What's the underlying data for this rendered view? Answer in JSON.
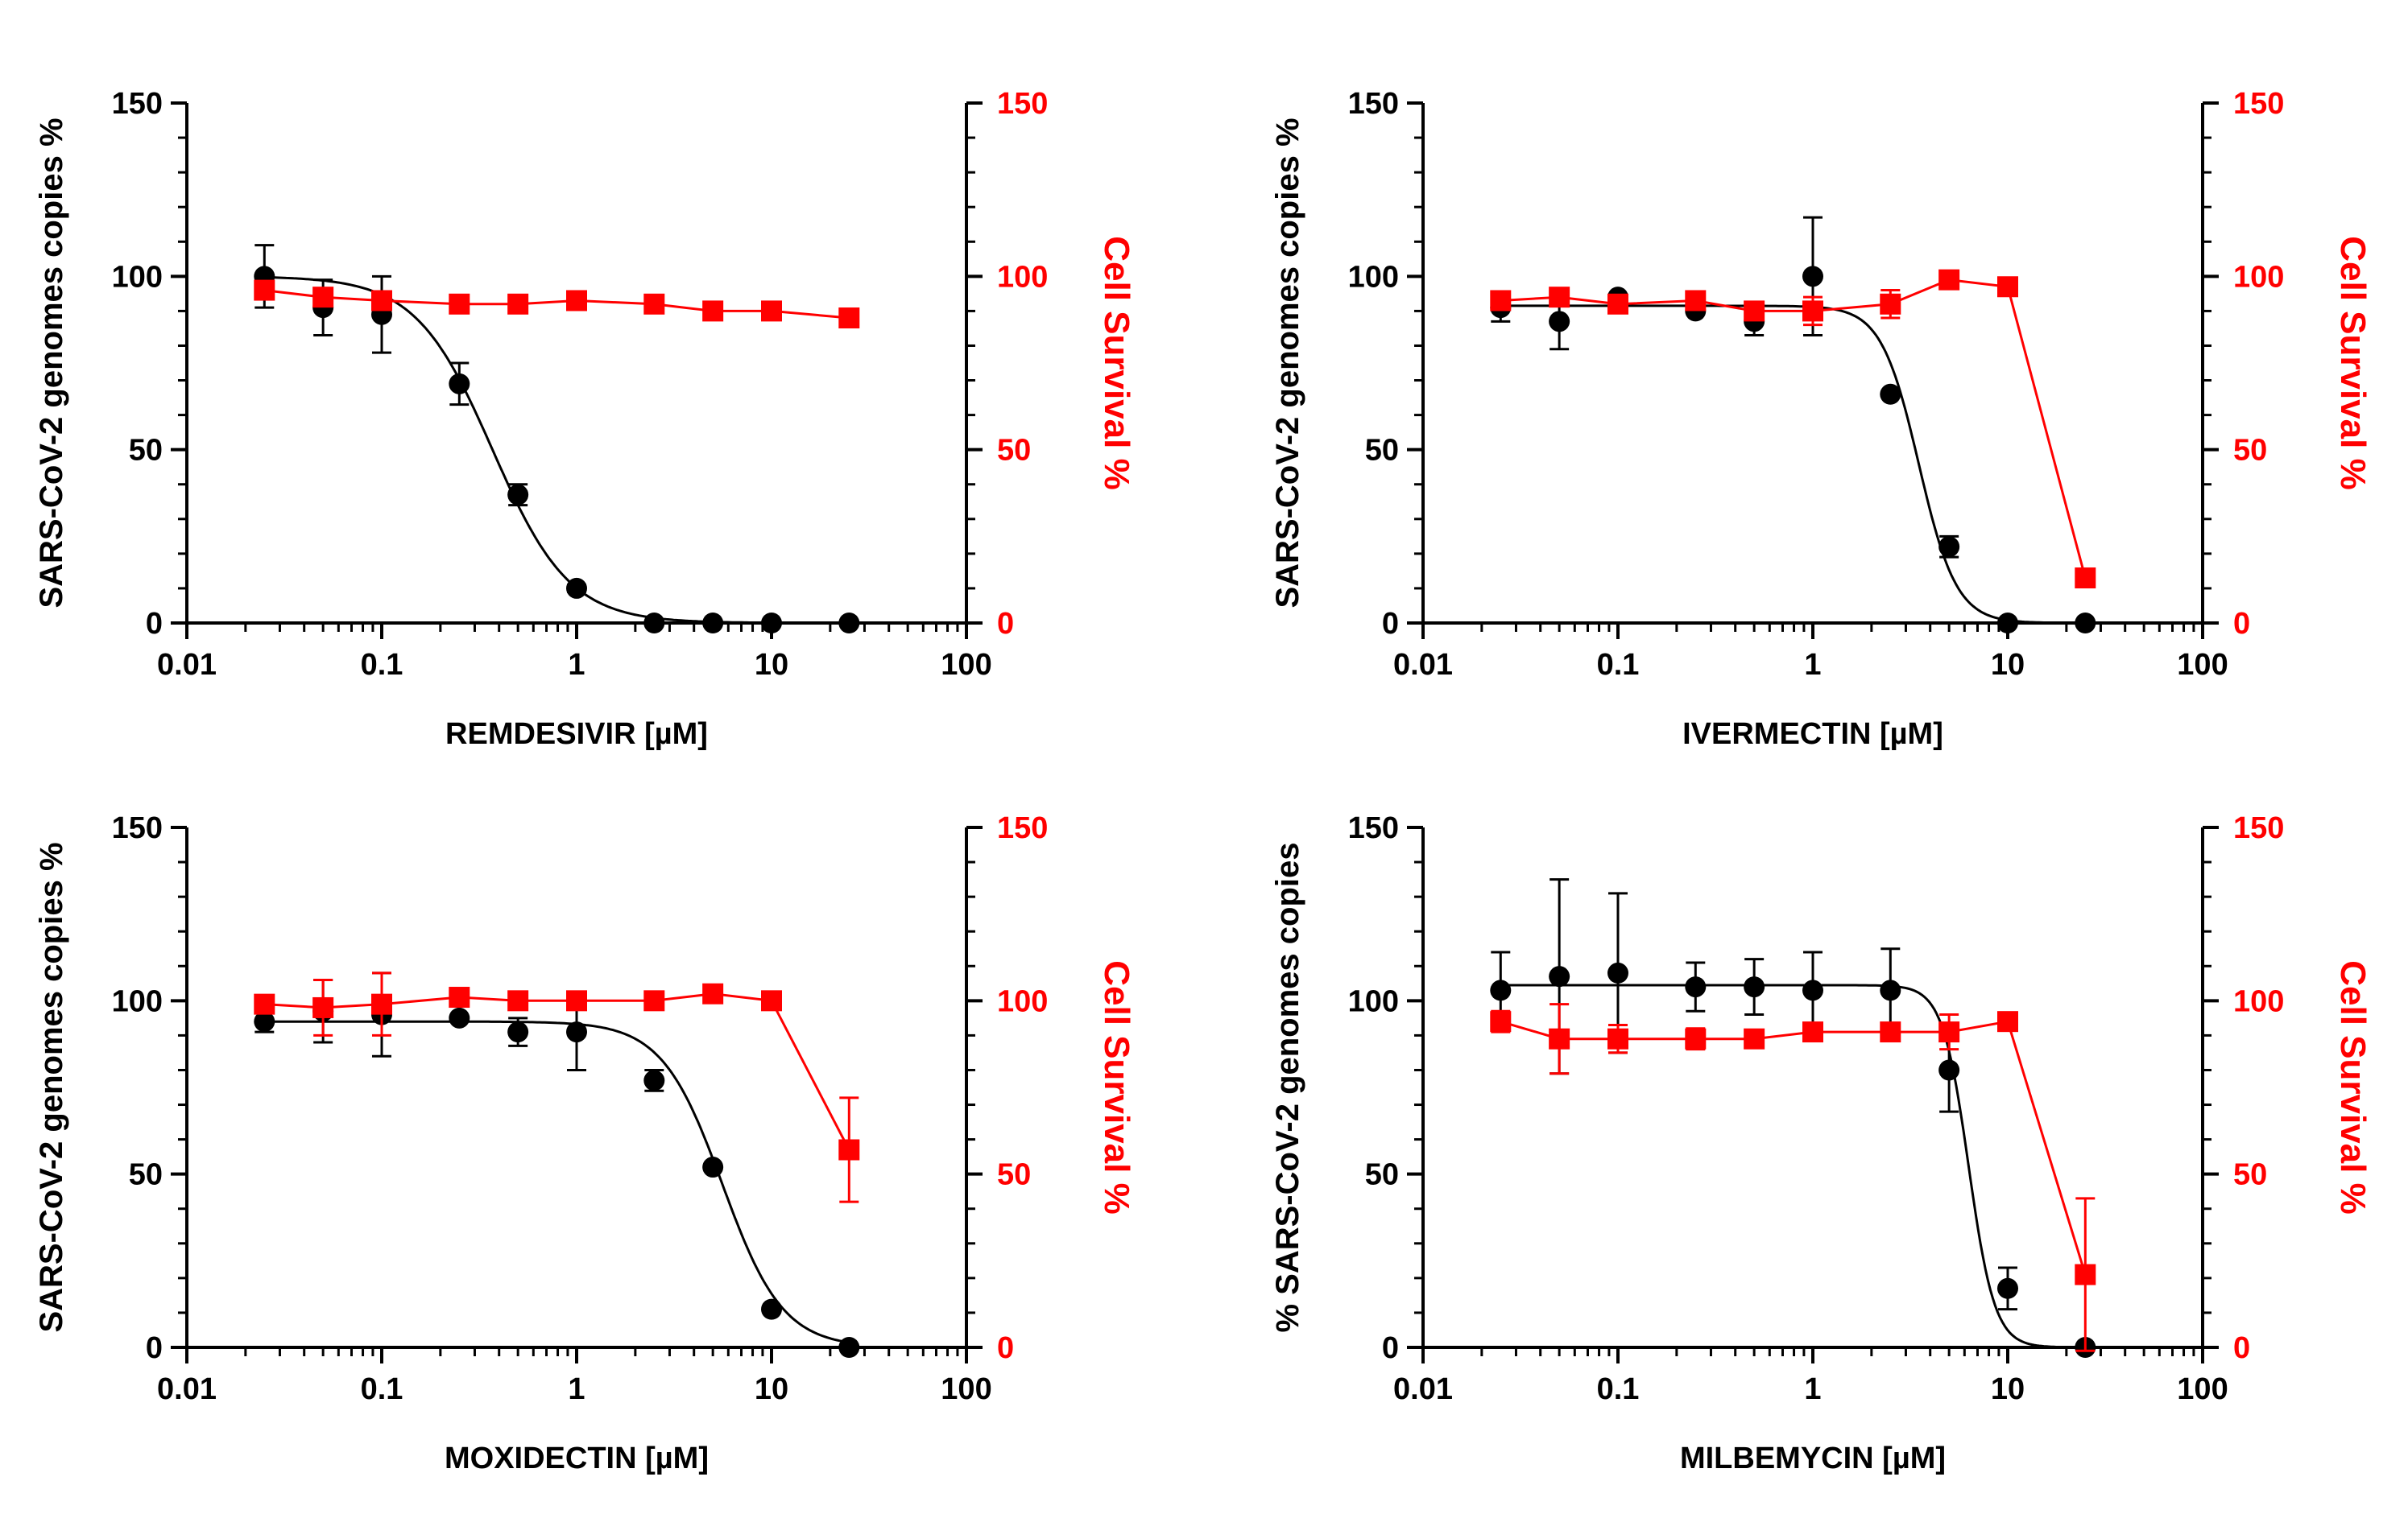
{
  "colors": {
    "virus": "#000000",
    "survival": "#ff0000"
  },
  "chart_data": [
    {
      "type": "line",
      "xscale": "log",
      "xlim": [
        0.01,
        100
      ],
      "xticks": [
        "0.01",
        "0.1",
        "1",
        "10",
        "100"
      ],
      "xlabel": "REMDESIVIR [µM]",
      "ylabel_left": "SARS-CoV-2 genomes copies %",
      "ylabel_right": "Cell Survival %",
      "ylim": [
        0,
        150
      ],
      "yticks": [
        "0",
        "50",
        "100",
        "150"
      ],
      "series": [
        {
          "name": "SARS-CoV-2 genomes copies %",
          "axis": "left",
          "marker": "circle",
          "color": "#000000",
          "x": [
            0.025,
            0.05,
            0.1,
            0.25,
            0.5,
            1,
            2.5,
            5,
            10,
            25
          ],
          "y": [
            100,
            91,
            89,
            69,
            37,
            10,
            0,
            0,
            0,
            0
          ],
          "err": [
            9,
            8,
            11,
            6,
            3,
            1,
            0,
            0,
            0,
            0
          ],
          "fit": {
            "top": 100,
            "bottom": 0,
            "ic50": 0.37,
            "hill": 2.2
          }
        },
        {
          "name": "Cell Survival %",
          "axis": "right",
          "marker": "square",
          "color": "#ff0000",
          "x": [
            0.025,
            0.05,
            0.1,
            0.25,
            0.5,
            1,
            2.5,
            5,
            10,
            25
          ],
          "y": [
            96,
            94,
            93,
            92,
            92,
            93,
            92,
            90,
            90,
            88
          ],
          "err": [
            0,
            0,
            0,
            0,
            0,
            0,
            0,
            0,
            0,
            0
          ]
        }
      ]
    },
    {
      "type": "line",
      "xscale": "log",
      "xlim": [
        0.01,
        100
      ],
      "xticks": [
        "0.01",
        "0.1",
        "1",
        "10",
        "100"
      ],
      "xlabel": "IVERMECTIN [µM]",
      "ylabel_left": "SARS-CoV-2 genomes copies %",
      "ylabel_right": "Cell Survival %",
      "ylim": [
        0,
        150
      ],
      "yticks": [
        "0",
        "50",
        "100",
        "150"
      ],
      "series": [
        {
          "name": "SARS-CoV-2 genomes copies %",
          "axis": "left",
          "marker": "circle",
          "color": "#000000",
          "x": [
            0.025,
            0.05,
            0.1,
            0.25,
            0.5,
            1,
            2.5,
            5,
            10,
            25
          ],
          "y": [
            91,
            87,
            94,
            90,
            87,
            100,
            66,
            22,
            0,
            0
          ],
          "err": [
            4,
            8,
            0,
            0,
            4,
            17,
            0,
            3,
            0,
            0
          ],
          "fit": {
            "top": 91.5,
            "bottom": 0,
            "ic50": 3.5,
            "hill": 4.5
          }
        },
        {
          "name": "Cell Survival %",
          "axis": "right",
          "marker": "square",
          "color": "#ff0000",
          "x": [
            0.025,
            0.05,
            0.1,
            0.25,
            0.5,
            1,
            2.5,
            5,
            10,
            25
          ],
          "y": [
            93,
            94,
            92,
            93,
            90,
            90,
            92,
            99,
            97,
            13
          ],
          "err": [
            0,
            0,
            0,
            0,
            0,
            4,
            4,
            0,
            0,
            0
          ]
        }
      ]
    },
    {
      "type": "line",
      "xscale": "log",
      "xlim": [
        0.01,
        100
      ],
      "xticks": [
        "0.01",
        "0.1",
        "1",
        "10",
        "100"
      ],
      "xlabel": "MOXIDECTIN [µM]",
      "ylabel_left": "SARS-CoV-2 genomes copies %",
      "ylabel_right": "Cell Survival %",
      "ylim": [
        0,
        150
      ],
      "yticks": [
        "0",
        "50",
        "100",
        "150"
      ],
      "series": [
        {
          "name": "SARS-CoV-2 genomes copies %",
          "axis": "left",
          "marker": "circle",
          "color": "#000000",
          "x": [
            0.025,
            0.05,
            0.1,
            0.25,
            0.5,
            1,
            2.5,
            5,
            10,
            25
          ],
          "y": [
            94,
            97,
            96,
            95,
            91,
            91,
            77,
            52,
            11,
            0
          ],
          "err": [
            3,
            9,
            12,
            0,
            4,
            11,
            3,
            0,
            0,
            0
          ],
          "fit": {
            "top": 94,
            "bottom": 0,
            "ic50": 5.6,
            "hill": 2.8
          }
        },
        {
          "name": "Cell Survival %",
          "axis": "right",
          "marker": "square",
          "color": "#ff0000",
          "x": [
            0.025,
            0.05,
            0.1,
            0.25,
            0.5,
            1,
            2.5,
            5,
            10,
            25
          ],
          "y": [
            99,
            98,
            99,
            101,
            100,
            100,
            100,
            102,
            100,
            57
          ],
          "err": [
            2,
            8,
            9,
            2,
            0,
            0,
            0,
            2,
            0,
            15
          ]
        }
      ]
    },
    {
      "type": "line",
      "xscale": "log",
      "xlim": [
        0.01,
        100
      ],
      "xticks": [
        "0.01",
        "0.1",
        "1",
        "10",
        "100"
      ],
      "xlabel": "MILBEMYCIN [µM]",
      "ylabel_left": "% SARS-CoV-2 genomes copies",
      "ylabel_right": "Cell Survival %",
      "ylim": [
        0,
        150
      ],
      "yticks": [
        "0",
        "50",
        "100",
        "150"
      ],
      "series": [
        {
          "name": "% SARS-CoV-2 genomes copies",
          "axis": "left",
          "marker": "circle",
          "color": "#000000",
          "x": [
            0.025,
            0.05,
            0.1,
            0.25,
            0.5,
            1,
            2.5,
            5,
            10,
            25
          ],
          "y": [
            103,
            107,
            108,
            104,
            104,
            103,
            103,
            80,
            17,
            0
          ],
          "err": [
            11,
            28,
            23,
            7,
            8,
            11,
            12,
            12,
            6,
            0
          ],
          "fit": {
            "top": 104.5,
            "bottom": 0,
            "ic50": 6.3,
            "hill": 6.5
          }
        },
        {
          "name": "Cell Survival %",
          "axis": "right",
          "marker": "square",
          "color": "#ff0000",
          "x": [
            0.025,
            0.05,
            0.1,
            0.25,
            0.5,
            1,
            2.5,
            5,
            10,
            25
          ],
          "y": [
            94,
            89,
            89,
            89,
            89,
            91,
            91,
            91,
            94,
            21
          ],
          "err": [
            3,
            10,
            4,
            3,
            2,
            2,
            2,
            5,
            0,
            22
          ]
        }
      ]
    }
  ]
}
